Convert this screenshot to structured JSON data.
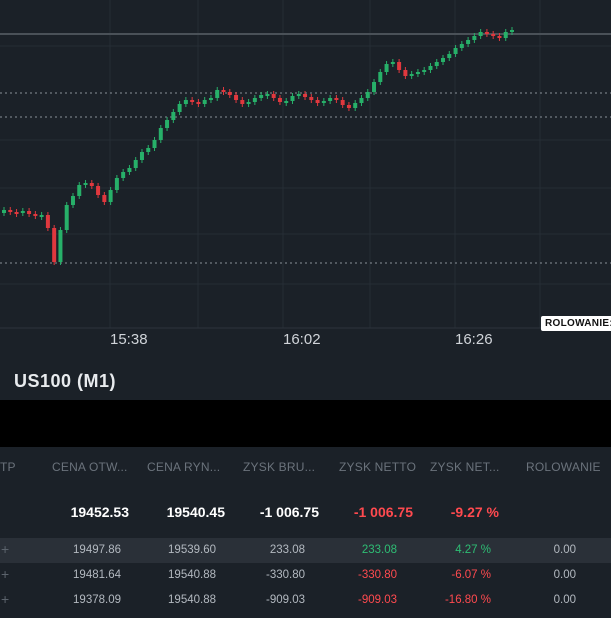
{
  "chart": {
    "symbol": "US100 (M1)",
    "rollover_badge": "ROLOWANIE:",
    "time_labels": [
      "15:38",
      "16:02",
      "16:26"
    ],
    "colors": {
      "up": "#27b069",
      "down": "#e0383e",
      "background": "#1b2128",
      "grid": "#262d35"
    }
  },
  "table": {
    "headers": [
      "TP",
      "CENA OTW...",
      "CENA RYN...",
      "ZYSK BRU...",
      "ZYSK NETTO",
      "ZYSK NET...",
      "ROLOWANIE"
    ],
    "summary": {
      "open_price": "19452.53",
      "market_price": "19540.45",
      "gross_profit": "-1 006.75",
      "net_profit": "-1 006.75",
      "net_profit_pct": "-9.27 %"
    },
    "rows": [
      {
        "tp": "+",
        "open_price": "19497.86",
        "market_price": "19539.60",
        "gross_profit": "233.08",
        "net_profit": "233.08",
        "net_profit_pct": "4.27 %",
        "rollover": "0.00"
      },
      {
        "tp": "+",
        "open_price": "19481.64",
        "market_price": "19540.88",
        "gross_profit": "-330.80",
        "net_profit": "-330.80",
        "net_profit_pct": "-6.07 %",
        "rollover": "0.00"
      },
      {
        "tp": "+",
        "open_price": "19378.09",
        "market_price": "19540.88",
        "gross_profit": "-909.03",
        "net_profit": "-909.03",
        "net_profit_pct": "-16.80 %",
        "rollover": "0.00"
      }
    ]
  }
}
